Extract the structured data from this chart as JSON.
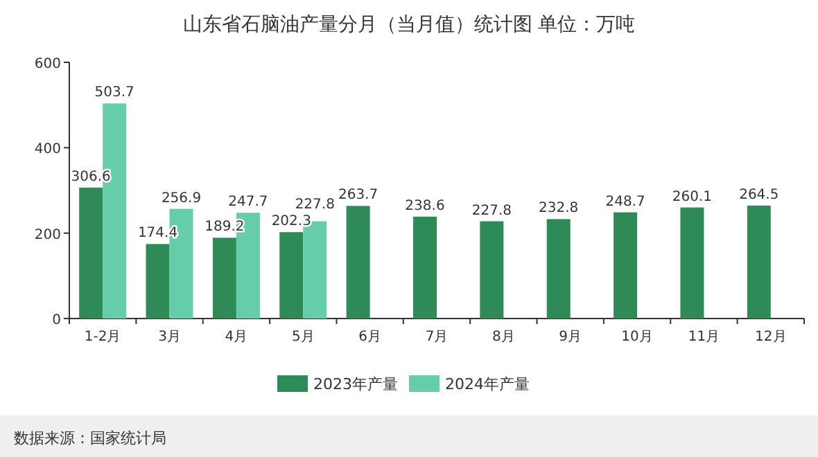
{
  "chart_data": {
    "type": "bar",
    "title": "山东省石脑油产量分月（当月值）统计图 单位：万吨",
    "categories": [
      "1-2月",
      "3月",
      "4月",
      "5月",
      "6月",
      "7月",
      "8月",
      "9月",
      "10月",
      "11月",
      "12月"
    ],
    "series": [
      {
        "name": "2023年产量",
        "color": "#2e8b57",
        "values": [
          306.6,
          174.4,
          189.2,
          202.3,
          263.7,
          238.6,
          227.8,
          232.8,
          248.7,
          260.1,
          264.5
        ]
      },
      {
        "name": "2024年产量",
        "color": "#66cdaa",
        "values": [
          503.7,
          256.9,
          247.7,
          227.8,
          null,
          null,
          null,
          null,
          null,
          null,
          null
        ]
      }
    ],
    "ylim": [
      0,
      600
    ],
    "yticks": [
      0,
      200,
      400,
      600
    ],
    "data_labels": true,
    "legend": "bottom",
    "annotations": [
      "数据来源：国家统计局"
    ]
  }
}
